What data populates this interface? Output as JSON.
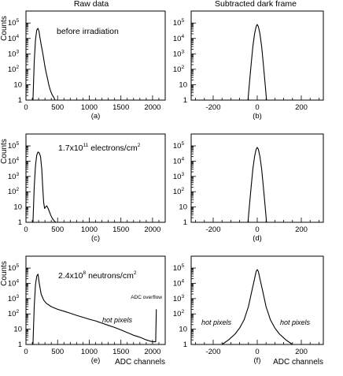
{
  "column_titles": [
    "Raw data",
    "Subtracted dark frame"
  ],
  "axis_labels": {
    "y": "Counts",
    "x": "ADC channels"
  },
  "log_exponent_base": "10",
  "panel_letters": [
    "(a)",
    "(b)",
    "(c)",
    "(d)",
    "(e)",
    "(f)"
  ],
  "row_annotations": [
    {
      "text": "before irradiation"
    },
    {
      "prefix": "1.7x10",
      "exp": "11",
      "unit": " electrons/cm",
      "unit_exp": "2"
    },
    {
      "prefix": "2.4x10",
      "exp": "8",
      "unit": " neutrons/cm",
      "unit_exp": "2"
    }
  ],
  "hot_pixels_label": "hot pixels",
  "adc_overflow_label": "ADC overflow",
  "chart_data": [
    {
      "panel": "(a)",
      "type": "line",
      "title": "Raw data",
      "ylabel": "Counts",
      "xlabel": "",
      "yscale": "log",
      "xlim": [
        0,
        2200
      ],
      "ylim": [
        1,
        600000
      ],
      "x_ticks": [
        0,
        500,
        1000,
        1500,
        2000
      ],
      "y_ticks": [
        "1",
        "10",
        "10^2",
        "10^3",
        "10^4",
        "10^5"
      ],
      "annotation": "before irradiation",
      "x": [
        110,
        130,
        150,
        170,
        190,
        205,
        220,
        240,
        260,
        280,
        300,
        320,
        340,
        360,
        380,
        400,
        420,
        440,
        460
      ],
      "y": [
        1,
        300,
        8000,
        35000,
        45000,
        30000,
        12000,
        4000,
        1500,
        500,
        150,
        60,
        25,
        10,
        5,
        3,
        2,
        1.5,
        1
      ]
    },
    {
      "panel": "(b)",
      "type": "line",
      "title": "Subtracted dark frame",
      "ylabel": "",
      "xlabel": "",
      "yscale": "log",
      "xlim": [
        -300,
        300
      ],
      "ylim": [
        1,
        600000
      ],
      "x_ticks": [
        -200,
        0,
        200
      ],
      "y_ticks": [
        "1",
        "10",
        "10^2",
        "10^3",
        "10^4",
        "10^5"
      ],
      "x": [
        -42,
        -36,
        -28,
        -20,
        -12,
        -5,
        0,
        5,
        12,
        20,
        28,
        36,
        42
      ],
      "y": [
        1,
        10,
        200,
        3000,
        20000,
        60000,
        80000,
        60000,
        20000,
        3000,
        200,
        10,
        1
      ]
    },
    {
      "panel": "(c)",
      "type": "line",
      "ylabel": "Counts",
      "xlabel": "",
      "yscale": "log",
      "xlim": [
        0,
        2200
      ],
      "ylim": [
        1,
        600000
      ],
      "x_ticks": [
        0,
        500,
        1000,
        1500,
        2000
      ],
      "y_ticks": [
        "1",
        "10",
        "10^2",
        "10^3",
        "10^4",
        "10^5"
      ],
      "annotation": "1.7x10^11 electrons/cm^2",
      "x": [
        110,
        130,
        150,
        170,
        190,
        210,
        230,
        250,
        265,
        280,
        295,
        310,
        330,
        350,
        370,
        390,
        410,
        430,
        450,
        470
      ],
      "y": [
        1,
        200,
        5000,
        25000,
        40000,
        35000,
        20000,
        3000,
        200,
        20,
        8,
        10,
        12,
        8,
        5,
        3,
        2,
        1.5,
        1.2,
        1
      ]
    },
    {
      "panel": "(d)",
      "type": "line",
      "ylabel": "",
      "xlabel": "",
      "yscale": "log",
      "xlim": [
        -300,
        300
      ],
      "ylim": [
        1,
        600000
      ],
      "x_ticks": [
        -200,
        0,
        200
      ],
      "y_ticks": [
        "1",
        "10",
        "10^2",
        "10^3",
        "10^4",
        "10^5"
      ],
      "x": [
        -42,
        -36,
        -28,
        -20,
        -12,
        -5,
        0,
        5,
        12,
        20,
        28,
        36,
        42
      ],
      "y": [
        1,
        10,
        200,
        3000,
        20000,
        60000,
        80000,
        60000,
        20000,
        3000,
        200,
        10,
        1
      ]
    },
    {
      "panel": "(e)",
      "type": "line",
      "ylabel": "Counts",
      "xlabel": "ADC channels",
      "yscale": "log",
      "xlim": [
        0,
        2200
      ],
      "ylim": [
        1,
        600000
      ],
      "x_ticks": [
        0,
        500,
        1000,
        1500,
        2000
      ],
      "y_ticks": [
        "1",
        "10",
        "10^2",
        "10^3",
        "10^4",
        "10^5"
      ],
      "annotation": "2.4x10^8 neutrons/cm^2",
      "x": [
        110,
        130,
        150,
        170,
        190,
        210,
        240,
        280,
        320,
        400,
        500,
        600,
        700,
        800,
        900,
        1000,
        1100,
        1200,
        1300,
        1400,
        1500,
        1600,
        1700,
        1800,
        1900,
        2000,
        2050,
        2060
      ],
      "y": [
        1,
        300,
        8000,
        30000,
        40000,
        10000,
        2000,
        800,
        500,
        300,
        200,
        150,
        110,
        80,
        60,
        45,
        35,
        25,
        18,
        13,
        9,
        6,
        4,
        3,
        2,
        1.5,
        1.5,
        200
      ]
    },
    {
      "panel": "(f)",
      "type": "line",
      "ylabel": "",
      "xlabel": "ADC channels",
      "yscale": "log",
      "xlim": [
        -300,
        300
      ],
      "ylim": [
        1,
        600000
      ],
      "x_ticks": [
        -200,
        0,
        200
      ],
      "y_ticks": [
        "1",
        "10",
        "10^2",
        "10^3",
        "10^4",
        "10^5"
      ],
      "x": [
        -160,
        -130,
        -100,
        -80,
        -60,
        -40,
        -25,
        -12,
        -5,
        0,
        5,
        12,
        25,
        40,
        60,
        80,
        100,
        130,
        160
      ],
      "y": [
        1,
        2,
        5,
        12,
        40,
        300,
        3000,
        20000,
        60000,
        80000,
        60000,
        20000,
        3000,
        300,
        40,
        12,
        5,
        2,
        1
      ]
    }
  ]
}
